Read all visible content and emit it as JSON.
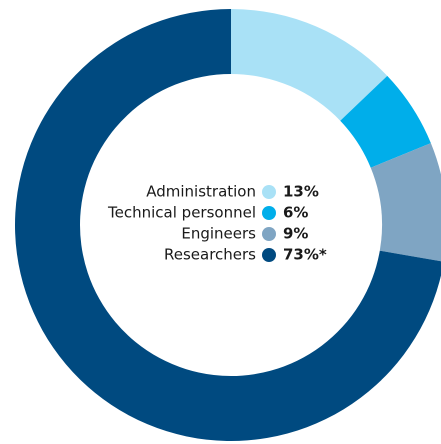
{
  "chart_data": {
    "type": "donut",
    "series": [
      {
        "name": "Administration",
        "color": "#a9e1f6",
        "values": [
          13
        ],
        "value_labels": [
          "13%"
        ]
      },
      {
        "name": "Technical personnel",
        "color": "#00aeea",
        "values": [
          6
        ],
        "value_labels": [
          "6%"
        ]
      },
      {
        "name": "Engineers",
        "color": "#7fa5c3",
        "values": [
          9
        ],
        "value_labels": [
          "9%"
        ]
      },
      {
        "name": "Researchers",
        "color": "#004a80",
        "values": [
          73
        ],
        "value_labels": [
          "73%*"
        ]
      }
    ]
  }
}
